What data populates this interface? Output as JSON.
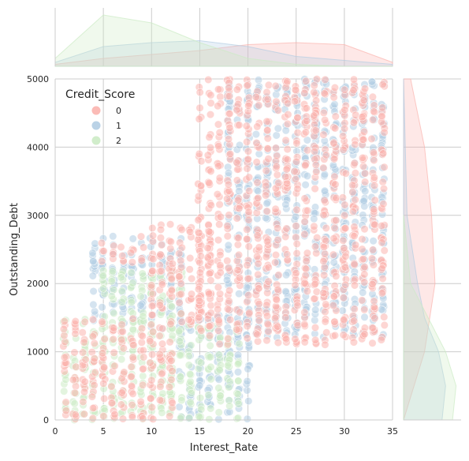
{
  "chart_data": {
    "type": "scatter",
    "variant": "jointplot",
    "xlabel": "Interest_Rate",
    "ylabel": "Outstanding_Debt",
    "xlim": [
      0,
      35
    ],
    "ylim": [
      0,
      5000
    ],
    "x_ticks": [
      0,
      5,
      10,
      15,
      20,
      25,
      30,
      35
    ],
    "y_ticks": [
      0,
      1000,
      2000,
      3000,
      4000,
      5000
    ],
    "x_tick_labels": [
      "0",
      "5",
      "10",
      "15",
      "20",
      "25",
      "30",
      "35"
    ],
    "y_tick_labels": [
      "0",
      "1000",
      "2000",
      "3000",
      "4000",
      "5000"
    ],
    "grid": true,
    "legend": {
      "title": "Credit_Score",
      "placement": "top-left",
      "entries": [
        "0",
        "1",
        "2"
      ]
    },
    "series": [
      {
        "name": "0",
        "color": "#fbb4ae",
        "x_min": 1,
        "x_max": 34,
        "y_clusters": [
          {
            "x_range": [
              5,
              9
            ],
            "y_range": [
              2300,
              2700
            ]
          },
          {
            "x_range": [
              10,
              16
            ],
            "y_range": [
              1400,
              2900
            ]
          },
          {
            "x_range": [
              15,
              34
            ],
            "y_range": [
              1100,
              5000
            ]
          },
          {
            "x_range": [
              1,
              12
            ],
            "y_range": [
              0,
              1500
            ]
          }
        ]
      },
      {
        "name": "1",
        "color": "#b3cde3",
        "x_min": 4,
        "x_max": 34,
        "y_clusters": [
          {
            "x_range": [
              4,
              13
            ],
            "y_range": [
              1300,
              2700
            ]
          },
          {
            "x_range": [
              13,
              20
            ],
            "y_range": [
              0,
              1600
            ]
          },
          {
            "x_range": [
              18,
              34
            ],
            "y_range": [
              1200,
              5000
            ]
          }
        ]
      },
      {
        "name": "2",
        "color": "#ccebc5",
        "x_min": 1,
        "x_max": 19,
        "y_clusters": [
          {
            "x_range": [
              1,
              12
            ],
            "y_range": [
              0,
              1500
            ]
          },
          {
            "x_range": [
              5,
              13
            ],
            "y_range": [
              1500,
              2200
            ]
          },
          {
            "x_range": [
              12,
              19
            ],
            "y_range": [
              0,
              1400
            ]
          }
        ]
      }
    ],
    "marginal_x_density": {
      "0": [
        [
          0,
          0.005
        ],
        [
          5,
          0.02
        ],
        [
          10,
          0.03
        ],
        [
          15,
          0.04
        ],
        [
          20,
          0.055
        ],
        [
          25,
          0.06
        ],
        [
          30,
          0.055
        ],
        [
          35,
          0.01
        ]
      ],
      "1": [
        [
          0,
          0.01
        ],
        [
          5,
          0.05
        ],
        [
          10,
          0.06
        ],
        [
          15,
          0.065
        ],
        [
          20,
          0.05
        ],
        [
          25,
          0.025
        ],
        [
          30,
          0.015
        ],
        [
          35,
          0.005
        ]
      ],
      "2": [
        [
          0,
          0.02
        ],
        [
          5,
          0.13
        ],
        [
          10,
          0.11
        ],
        [
          15,
          0.06
        ],
        [
          20,
          0.02
        ],
        [
          25,
          0.005
        ],
        [
          30,
          0.0
        ],
        [
          35,
          0.0
        ]
      ]
    },
    "marginal_y_density": {
      "0": [
        [
          0,
          0.0
        ],
        [
          1000,
          0.3
        ],
        [
          2000,
          0.45
        ],
        [
          3000,
          0.4
        ],
        [
          4000,
          0.3
        ],
        [
          5000,
          0.1
        ]
      ],
      "1": [
        [
          0,
          0.55
        ],
        [
          500,
          0.6
        ],
        [
          1000,
          0.5
        ],
        [
          1500,
          0.3
        ],
        [
          2000,
          0.2
        ],
        [
          3000,
          0.05
        ],
        [
          5000,
          0.0
        ]
      ],
      "2": [
        [
          0,
          0.7
        ],
        [
          500,
          0.75
        ],
        [
          1000,
          0.6
        ],
        [
          1500,
          0.35
        ],
        [
          2000,
          0.1
        ],
        [
          3000,
          0.0
        ]
      ]
    }
  }
}
